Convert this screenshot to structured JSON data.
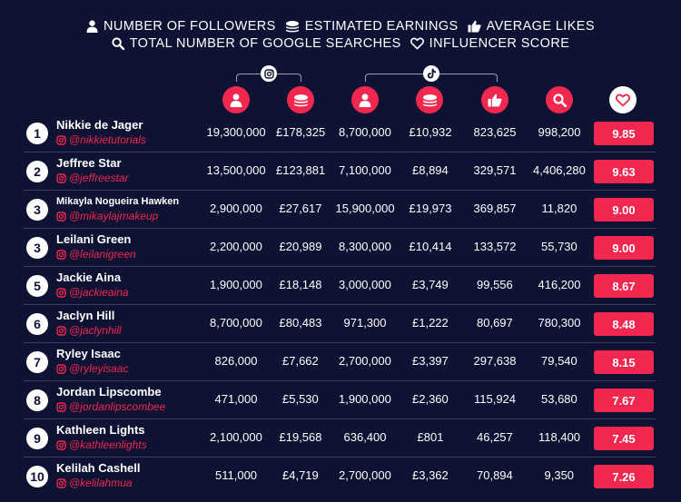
{
  "legend": {
    "followers": "NUMBER OF FOLLOWERS",
    "earnings": "ESTIMATED EARNINGS",
    "likes": "AVERAGE LIKES",
    "searches": "TOTAL NUMBER OF GOOGLE SEARCHES",
    "score": "INFLUENCER SCORE"
  },
  "platforms": [
    "instagram-icon",
    "tiktok-icon"
  ],
  "colors": {
    "background": "#0e1233",
    "accent": "#f0284f",
    "divider": "#3a3f60"
  },
  "chart_data": {
    "type": "table",
    "columns": [
      "Instagram followers",
      "Instagram estimated earnings",
      "TikTok followers",
      "TikTok estimated earnings",
      "TikTok average likes",
      "Total number of Google searches",
      "Influencer score"
    ],
    "rows": [
      {
        "rank": "1",
        "name": "Nikkie de Jager",
        "handle": "@nikkietutorials",
        "ig_followers": "19,300,000",
        "ig_earnings": "£178,325",
        "tt_followers": "8,700,000",
        "tt_earnings": "£10,932",
        "likes": "823,625",
        "searches": "998,200",
        "score": "9.85"
      },
      {
        "rank": "2",
        "name": "Jeffree Star",
        "handle": "@jeffreestar",
        "ig_followers": "13,500,000",
        "ig_earnings": "£123,881",
        "tt_followers": "7,100,000",
        "tt_earnings": "£8,894",
        "likes": "329,571",
        "searches": "4,406,280",
        "score": "9.63"
      },
      {
        "rank": "3",
        "name": "Mikayla Nogueira Hawken",
        "handle": "@mikaylajmakeup",
        "ig_followers": "2,900,000",
        "ig_earnings": "£27,617",
        "tt_followers": "15,900,000",
        "tt_earnings": "£19,973",
        "likes": "369,857",
        "searches": "11,820",
        "score": "9.00"
      },
      {
        "rank": "3",
        "name": "Leilani Green",
        "handle": "@leilanigreen",
        "ig_followers": "2,200,000",
        "ig_earnings": "£20,989",
        "tt_followers": "8,300,000",
        "tt_earnings": "£10,414",
        "likes": "133,572",
        "searches": "55,730",
        "score": "9.00"
      },
      {
        "rank": "5",
        "name": "Jackie Aina",
        "handle": "@jackieaina",
        "ig_followers": "1,900,000",
        "ig_earnings": "£18,148",
        "tt_followers": "3,000,000",
        "tt_earnings": "£3,749",
        "likes": "99,556",
        "searches": "416,200",
        "score": "8.67"
      },
      {
        "rank": "6",
        "name": "Jaclyn Hill",
        "handle": "@jaclynhill",
        "ig_followers": "8,700,000",
        "ig_earnings": "£80,483",
        "tt_followers": "971,300",
        "tt_earnings": "£1,222",
        "likes": "80,697",
        "searches": "780,300",
        "score": "8.48"
      },
      {
        "rank": "7",
        "name": "Ryley Isaac",
        "handle": "@ryleyisaac",
        "ig_followers": "826,000",
        "ig_earnings": "£7,662",
        "tt_followers": "2,700,000",
        "tt_earnings": "£3,397",
        "likes": "297,638",
        "searches": "79,540",
        "score": "8.15"
      },
      {
        "rank": "8",
        "name": "Jordan Lipscombe",
        "handle": "@jordanlipscombee",
        "ig_followers": "471,000",
        "ig_earnings": "£5,530",
        "tt_followers": "1,900,000",
        "tt_earnings": "£2,360",
        "likes": "115,924",
        "searches": "53,680",
        "score": "7.67"
      },
      {
        "rank": "9",
        "name": "Kathleen Lights",
        "handle": "@kathleenlights",
        "ig_followers": "2,100,000",
        "ig_earnings": "£19,568",
        "tt_followers": "636,400",
        "tt_earnings": "£801",
        "likes": "46,257",
        "searches": "118,400",
        "score": "7.45"
      },
      {
        "rank": "10",
        "name": "Kelilah Cashell",
        "handle": "@kelilahmua",
        "ig_followers": "511,000",
        "ig_earnings": "£4,719",
        "tt_followers": "2,700,000",
        "tt_earnings": "£3,362",
        "likes": "70,894",
        "searches": "9,350",
        "score": "7.26"
      }
    ]
  }
}
